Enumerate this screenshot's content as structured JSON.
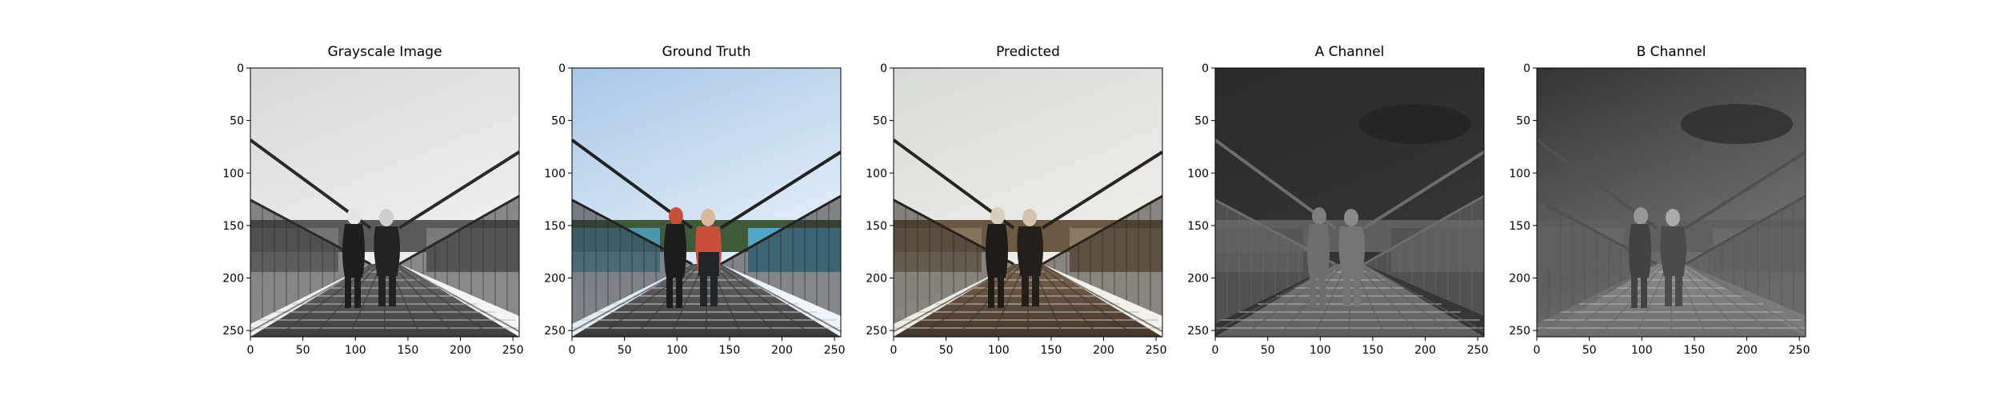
{
  "panels": [
    {
      "title": "Grayscale Image",
      "mode": "gray"
    },
    {
      "title": "Ground Truth",
      "mode": "color"
    },
    {
      "title": "Predicted",
      "mode": "pred"
    },
    {
      "title": "A Channel",
      "mode": "achan"
    },
    {
      "title": "B Channel",
      "mode": "bchan"
    }
  ],
  "axis": {
    "x_ticks": [
      "0",
      "50",
      "100",
      "150",
      "200",
      "250"
    ],
    "y_ticks": [
      "0",
      "50",
      "100",
      "150",
      "200",
      "250"
    ],
    "range": [
      0,
      256
    ]
  }
}
